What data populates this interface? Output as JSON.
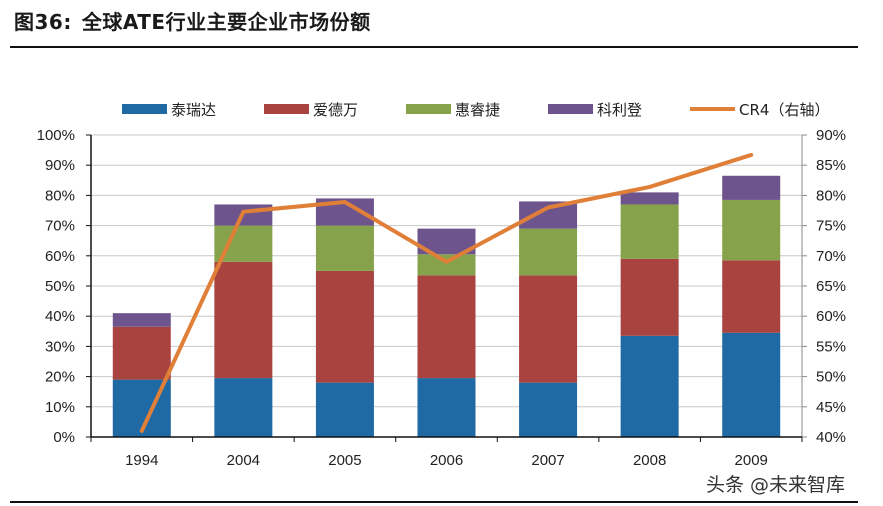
{
  "header": {
    "figure_label": "图36:",
    "title": "全球ATE行业主要企业市场份额"
  },
  "watermark": "头条 @未来智库",
  "colors": {
    "teradyne": "#1f6aa5",
    "advantest": "#a94340",
    "verigy": "#86a24a",
    "credence": "#6e548d",
    "cr4": "#e07f38",
    "grid": "#c8c8c8",
    "axis_left": "#111111",
    "axis_right": "#8a8a8a"
  },
  "chart_data": {
    "type": "bar",
    "stacked": true,
    "title": "全球ATE行业主要企业市场份额",
    "xlabel": "",
    "ylabel": "",
    "categories": [
      "1994",
      "2004",
      "2005",
      "2006",
      "2007",
      "2008",
      "2009"
    ],
    "series": [
      {
        "name": "泰瑞达",
        "color_key": "teradyne",
        "values": [
          19,
          19.5,
          18,
          19.5,
          18,
          33.5,
          34.5
        ]
      },
      {
        "name": "爱德万",
        "color_key": "advantest",
        "values": [
          17.5,
          38.5,
          37,
          34,
          35.5,
          25.5,
          24
        ]
      },
      {
        "name": "惠睿捷",
        "color_key": "verigy",
        "values": [
          0,
          12,
          15,
          7,
          15.5,
          18,
          20
        ]
      },
      {
        "name": "科利登",
        "color_key": "credence",
        "values": [
          4.5,
          7,
          9,
          8.5,
          9,
          4,
          8
        ]
      }
    ],
    "line_series": {
      "name": "CR4（右轴）",
      "color_key": "cr4",
      "axis": "right",
      "values": [
        41,
        77.3,
        78.9,
        69,
        78,
        81.4,
        86.7
      ]
    },
    "y_left": {
      "min": 0,
      "max": 100,
      "step": 10,
      "ticks": [
        "0%",
        "10%",
        "20%",
        "30%",
        "40%",
        "50%",
        "60%",
        "70%",
        "80%",
        "90%",
        "100%"
      ]
    },
    "y_right": {
      "min": 40,
      "max": 90,
      "step": 5,
      "ticks": [
        "40%",
        "45%",
        "50%",
        "55%",
        "60%",
        "65%",
        "70%",
        "75%",
        "80%",
        "85%",
        "90%"
      ]
    },
    "grid": true,
    "legend_position": "top",
    "legend": [
      "泰瑞达",
      "爱德万",
      "惠睿捷",
      "科利登",
      "CR4（右轴）"
    ]
  }
}
